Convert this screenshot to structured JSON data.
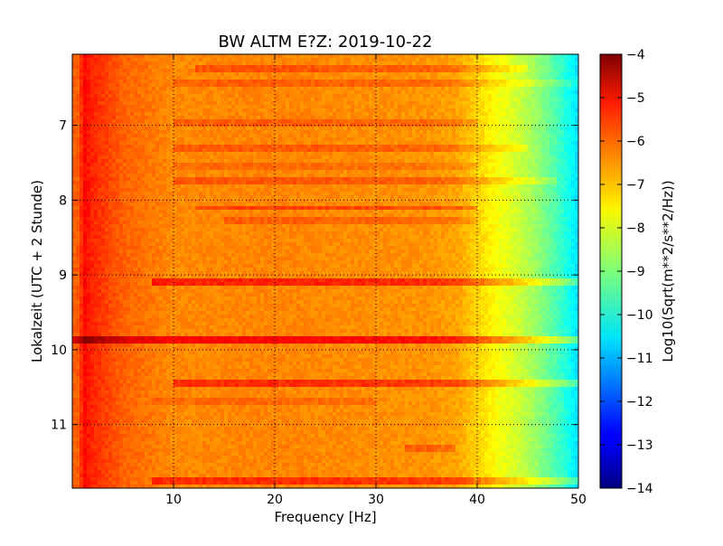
{
  "chart_data": {
    "type": "heatmap",
    "title": "BW ALTM E?Z: 2019-10-22",
    "xlabel": "Frequency [Hz]",
    "ylabel": "Lokalzeit (UTC + 2 Stunde)",
    "xlim": [
      0,
      50
    ],
    "ylim": [
      11.85,
      6.05
    ],
    "x_ticks": [
      10,
      20,
      30,
      40,
      50
    ],
    "y_ticks": [
      7,
      8,
      9,
      10,
      11
    ],
    "grid": true,
    "colormap": "jet",
    "colorbar": {
      "label": "Log10(Sqrt(m**2/s**2/Hz))",
      "range": [
        -14,
        -4
      ],
      "ticks": [
        -4,
        -5,
        -6,
        -7,
        -8,
        -9,
        -10,
        -11,
        -12,
        -13,
        -14
      ]
    },
    "spectrum_profile": [
      {
        "freq_hz": 0.5,
        "value": -6.2
      },
      {
        "freq_hz": 1.2,
        "value": -5.3
      },
      {
        "freq_hz": 2.0,
        "value": -5.6
      },
      {
        "freq_hz": 3.0,
        "value": -5.8
      },
      {
        "freq_hz": 5.0,
        "value": -6.2
      },
      {
        "freq_hz": 10.0,
        "value": -6.6
      },
      {
        "freq_hz": 20.0,
        "value": -6.55
      },
      {
        "freq_hz": 30.0,
        "value": -6.65
      },
      {
        "freq_hz": 35.0,
        "value": -6.7
      },
      {
        "freq_hz": 38.0,
        "value": -6.85
      },
      {
        "freq_hz": 40.0,
        "value": -7.3
      },
      {
        "freq_hz": 42.0,
        "value": -7.8
      },
      {
        "freq_hz": 44.0,
        "value": -8.2
      },
      {
        "freq_hz": 46.0,
        "value": -8.8
      },
      {
        "freq_hz": 48.0,
        "value": -9.6
      },
      {
        "freq_hz": 49.5,
        "value": -10.3
      },
      {
        "freq_hz": 50.0,
        "value": -10.6
      }
    ],
    "noise_bands": [
      {
        "time_h": 6.25,
        "freq_range": [
          12,
          45
        ],
        "delta": 0.5
      },
      {
        "time_h": 6.45,
        "freq_range": [
          10,
          50
        ],
        "delta": 0.4
      },
      {
        "time_h": 6.95,
        "freq_range": [
          10,
          40
        ],
        "delta": 0.4
      },
      {
        "time_h": 7.3,
        "freq_range": [
          10,
          45
        ],
        "delta": 0.45
      },
      {
        "time_h": 7.55,
        "freq_range": [
          10,
          40
        ],
        "delta": 0.3
      },
      {
        "time_h": 7.75,
        "freq_range": [
          10,
          48
        ],
        "delta": 0.5
      },
      {
        "time_h": 8.1,
        "freq_range": [
          12,
          40
        ],
        "delta": 0.7
      },
      {
        "time_h": 8.27,
        "freq_range": [
          15,
          40
        ],
        "delta": 0.4
      },
      {
        "time_h": 9.1,
        "freq_range": [
          8,
          50
        ],
        "delta": 1.0
      },
      {
        "time_h": 9.88,
        "freq_range": [
          0,
          50
        ],
        "delta": 1.3
      },
      {
        "time_h": 10.45,
        "freq_range": [
          10,
          50
        ],
        "delta": 0.9
      },
      {
        "time_h": 10.7,
        "freq_range": [
          8,
          30
        ],
        "delta": 0.3
      },
      {
        "time_h": 11.3,
        "freq_range": [
          33,
          38
        ],
        "delta": 0.5
      },
      {
        "time_h": 11.75,
        "freq_range": [
          8,
          50
        ],
        "delta": 0.9
      }
    ]
  }
}
